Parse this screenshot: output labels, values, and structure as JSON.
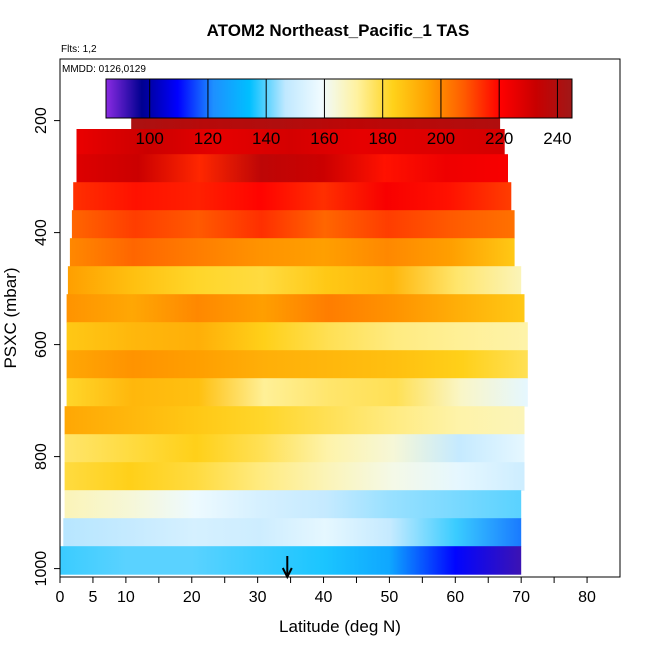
{
  "chart_data": {
    "type": "heatmap",
    "title": "ATOM2 Northeast_Pacific_1 TAS",
    "annotations": {
      "flights": "Flts: 1,2",
      "dates": "MMDD: 0126,0129"
    },
    "xlabel": "Latitude (deg N)",
    "ylabel": "PSXC (mbar)",
    "xlim": [
      0,
      85
    ],
    "ylim": [
      1015,
      90
    ],
    "x_ticks": [
      0,
      5,
      10,
      20,
      30,
      40,
      50,
      60,
      70,
      80
    ],
    "x_minor_ticks": [
      15,
      25,
      35,
      45,
      55,
      65,
      75
    ],
    "y_ticks": [
      200,
      400,
      600,
      800,
      1000
    ],
    "colorbar": {
      "range": [
        85,
        245
      ],
      "ticks": [
        100,
        120,
        140,
        160,
        180,
        200,
        220,
        240
      ],
      "colors": [
        "#8a2be2",
        "#000090",
        "#0000ff",
        "#1e90ff",
        "#00bfff",
        "#bfe8ff",
        "#f0fbff",
        "#fff2a0",
        "#ffd21a",
        "#ffa000",
        "#ff5a00",
        "#ff0000",
        "#c80000",
        "#a01818"
      ]
    },
    "marker": {
      "label": "arrow",
      "latitude": 34.5
    },
    "pressure_bands": [
      {
        "p_top": 170,
        "p_bot": 215,
        "lat_min": 10.8,
        "lat_max": 66.8,
        "tas": [
          242,
          238,
          240,
          236,
          238,
          240
        ]
      },
      {
        "p_top": 215,
        "p_bot": 260,
        "lat_min": 2.5,
        "lat_max": 67.5,
        "tas": [
          225,
          232,
          226,
          230,
          226,
          228,
          230
        ]
      },
      {
        "p_top": 260,
        "p_bot": 310,
        "lat_min": 2.5,
        "lat_max": 68,
        "tas": [
          228,
          232,
          215,
          236,
          232,
          218,
          224,
          222
        ]
      },
      {
        "p_top": 310,
        "p_bot": 360,
        "lat_min": 2,
        "lat_max": 68.5,
        "tas": [
          214,
          218,
          216,
          220,
          214,
          222,
          218,
          212
        ]
      },
      {
        "p_top": 360,
        "p_bot": 410,
        "lat_min": 1.8,
        "lat_max": 69,
        "tas": [
          206,
          212,
          208,
          214,
          206,
          212,
          208,
          204
        ]
      },
      {
        "p_top": 410,
        "p_bot": 460,
        "lat_min": 1.5,
        "lat_max": 69,
        "tas": [
          200,
          206,
          202,
          198,
          196,
          200,
          196,
          186
        ]
      },
      {
        "p_top": 460,
        "p_bot": 510,
        "lat_min": 1.2,
        "lat_max": 70,
        "tas": [
          196,
          188,
          182,
          180,
          186,
          190,
          176,
          168
        ]
      },
      {
        "p_top": 510,
        "p_bot": 560,
        "lat_min": 1,
        "lat_max": 70.5,
        "tas": [
          198,
          194,
          200,
          196,
          202,
          198,
          192,
          186
        ]
      },
      {
        "p_top": 560,
        "p_bot": 610,
        "lat_min": 1,
        "lat_max": 71,
        "tas": [
          186,
          190,
          192,
          184,
          178,
          174,
          172,
          170
        ]
      },
      {
        "p_top": 610,
        "p_bot": 660,
        "lat_min": 1,
        "lat_max": 71,
        "tas": [
          194,
          198,
          196,
          192,
          190,
          188,
          184,
          178
        ]
      },
      {
        "p_top": 660,
        "p_bot": 710,
        "lat_min": 1,
        "lat_max": 71,
        "tas": [
          182,
          190,
          188,
          172,
          176,
          178,
          166,
          156
        ]
      },
      {
        "p_top": 710,
        "p_bot": 760,
        "lat_min": 0.7,
        "lat_max": 70.5,
        "tas": [
          194,
          190,
          186,
          182,
          178,
          174,
          170,
          168
        ]
      },
      {
        "p_top": 760,
        "p_bot": 810,
        "lat_min": 0.7,
        "lat_max": 70.5,
        "tas": [
          176,
          180,
          184,
          178,
          170,
          164,
          148,
          156
        ]
      },
      {
        "p_top": 810,
        "p_bot": 860,
        "lat_min": 0.7,
        "lat_max": 70.5,
        "tas": [
          180,
          184,
          180,
          174,
          168,
          162,
          156,
          150
        ]
      },
      {
        "p_top": 860,
        "p_bot": 910,
        "lat_min": 0.7,
        "lat_max": 70,
        "tas": [
          168,
          164,
          158,
          152,
          148,
          144,
          142,
          140
        ]
      },
      {
        "p_top": 910,
        "p_bot": 960,
        "lat_min": 0.5,
        "lat_max": 70,
        "tas": [
          146,
          148,
          152,
          150,
          156,
          148,
          138,
          120
        ]
      },
      {
        "p_top": 960,
        "p_bot": 1010,
        "lat_min": 0,
        "lat_max": 70,
        "tas": [
          138,
          140,
          140,
          138,
          136,
          128,
          110,
          92
        ]
      }
    ]
  }
}
